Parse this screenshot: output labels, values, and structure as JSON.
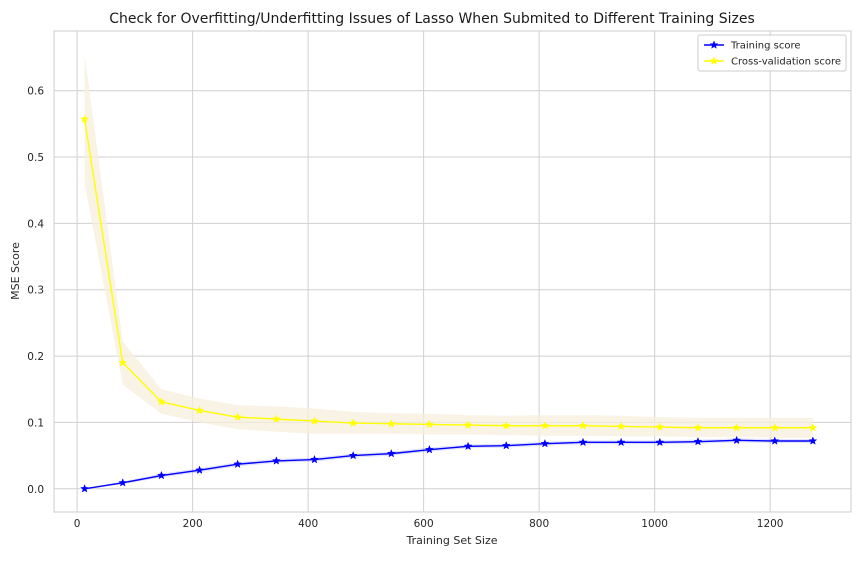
{
  "chart_data": {
    "type": "line",
    "title": "Check for Overfitting/Underfitting Issues of Lasso When Submited to Different Training Sizes",
    "xlabel": "Training Set Size",
    "ylabel": "MSE Score",
    "xlim": [
      -40,
      1340
    ],
    "ylim": [
      -0.035,
      0.69
    ],
    "xticks": [
      0,
      200,
      400,
      600,
      800,
      1000,
      1200
    ],
    "yticks": [
      0.0,
      0.1,
      0.2,
      0.3,
      0.4,
      0.5,
      0.6
    ],
    "grid": true,
    "legend_position": "top-right",
    "x": [
      13,
      79,
      146,
      212,
      278,
      345,
      411,
      478,
      544,
      610,
      677,
      743,
      810,
      876,
      942,
      1009,
      1075,
      1142,
      1208,
      1274
    ],
    "series": [
      {
        "name": "Training score",
        "color": "#0000ff",
        "marker": "star",
        "values": [
          0.0,
          0.009,
          0.02,
          0.028,
          0.037,
          0.042,
          0.044,
          0.05,
          0.053,
          0.059,
          0.064,
          0.065,
          0.068,
          0.07,
          0.07,
          0.07,
          0.071,
          0.073,
          0.072,
          0.072
        ],
        "band_lower": [
          0.0,
          0.007,
          0.017,
          0.025,
          0.034,
          0.039,
          0.041,
          0.047,
          0.05,
          0.056,
          0.061,
          0.062,
          0.065,
          0.067,
          0.067,
          0.067,
          0.068,
          0.07,
          0.069,
          0.069
        ],
        "band_upper": [
          0.0,
          0.011,
          0.023,
          0.031,
          0.04,
          0.045,
          0.047,
          0.053,
          0.056,
          0.062,
          0.067,
          0.068,
          0.071,
          0.073,
          0.073,
          0.073,
          0.074,
          0.076,
          0.075,
          0.075
        ]
      },
      {
        "name": "Cross-validation score",
        "color": "#ffff00",
        "band_color": "#f5efdc",
        "marker": "star",
        "values": [
          0.557,
          0.19,
          0.131,
          0.118,
          0.108,
          0.105,
          0.102,
          0.099,
          0.098,
          0.097,
          0.096,
          0.095,
          0.095,
          0.095,
          0.094,
          0.093,
          0.092,
          0.092,
          0.092,
          0.092
        ],
        "band_lower": [
          0.46,
          0.157,
          0.113,
          0.1,
          0.09,
          0.086,
          0.083,
          0.083,
          0.083,
          0.082,
          0.082,
          0.081,
          0.08,
          0.08,
          0.079,
          0.079,
          0.078,
          0.078,
          0.077,
          0.077
        ],
        "band_upper": [
          0.655,
          0.222,
          0.15,
          0.136,
          0.126,
          0.124,
          0.121,
          0.116,
          0.114,
          0.113,
          0.111,
          0.11,
          0.111,
          0.111,
          0.11,
          0.108,
          0.107,
          0.107,
          0.107,
          0.107
        ]
      }
    ]
  }
}
